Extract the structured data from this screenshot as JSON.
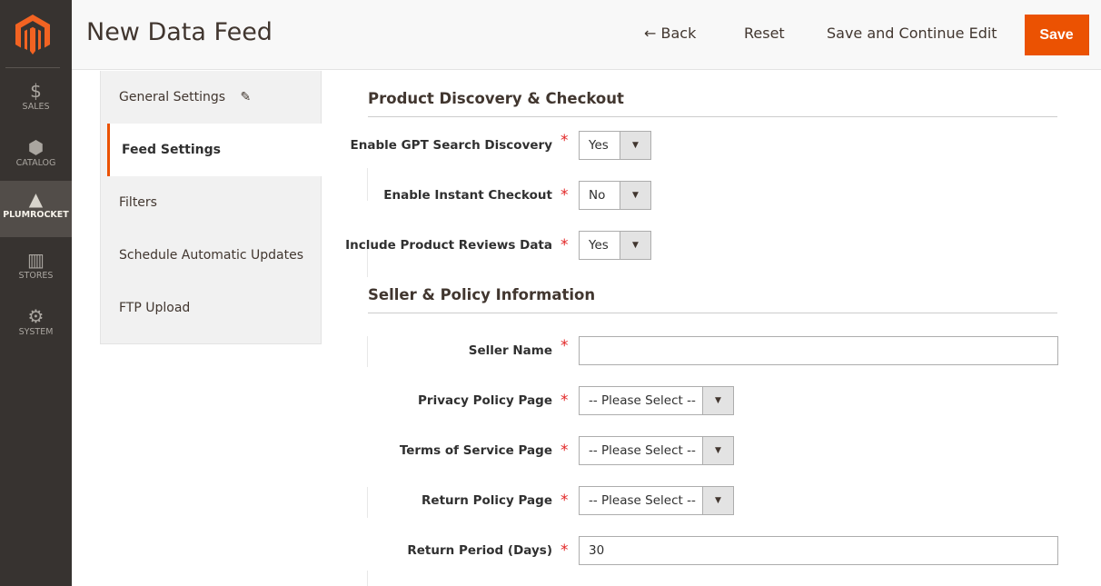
{
  "nav": {
    "items": [
      {
        "label": "SALES",
        "icon": "dollar-icon"
      },
      {
        "label": "CATALOG",
        "icon": "box-icon"
      },
      {
        "label": "PLUMROCKET",
        "icon": "plumrocket-icon",
        "active": true
      },
      {
        "label": "STORES",
        "icon": "store-icon"
      },
      {
        "label": "SYSTEM",
        "icon": "gear-icon"
      }
    ]
  },
  "header": {
    "title": "New Data Feed",
    "back": "Back",
    "reset": "Reset",
    "save_continue": "Save and Continue Edit",
    "save": "Save"
  },
  "tabs": [
    {
      "label": "General Settings",
      "icon": "pencil-icon"
    },
    {
      "label": "Feed Settings",
      "active": true
    },
    {
      "label": "Filters"
    },
    {
      "label": "Schedule Automatic Updates"
    },
    {
      "label": "FTP Upload"
    }
  ],
  "sections": {
    "discovery": "Product Discovery & Checkout",
    "seller": "Seller & Policy Information"
  },
  "fields": {
    "gpt": {
      "label": "Enable GPT Search Discovery",
      "value": "Yes"
    },
    "checkout": {
      "label": "Enable Instant Checkout",
      "value": "No"
    },
    "reviews": {
      "label": "Include Product Reviews Data",
      "value": "Yes"
    },
    "seller": {
      "label": "Seller Name",
      "value": ""
    },
    "privacy": {
      "label": "Privacy Policy Page",
      "value": "-- Please Select --"
    },
    "terms": {
      "label": "Terms of Service Page",
      "value": "-- Please Select --"
    },
    "returnpolicy": {
      "label": "Return Policy Page",
      "value": "-- Please Select --"
    },
    "period": {
      "label": "Return Period (Days)",
      "value": "30"
    }
  },
  "required_mark": "*",
  "colors": {
    "accent": "#eb5202",
    "nav_bg": "#373330"
  }
}
